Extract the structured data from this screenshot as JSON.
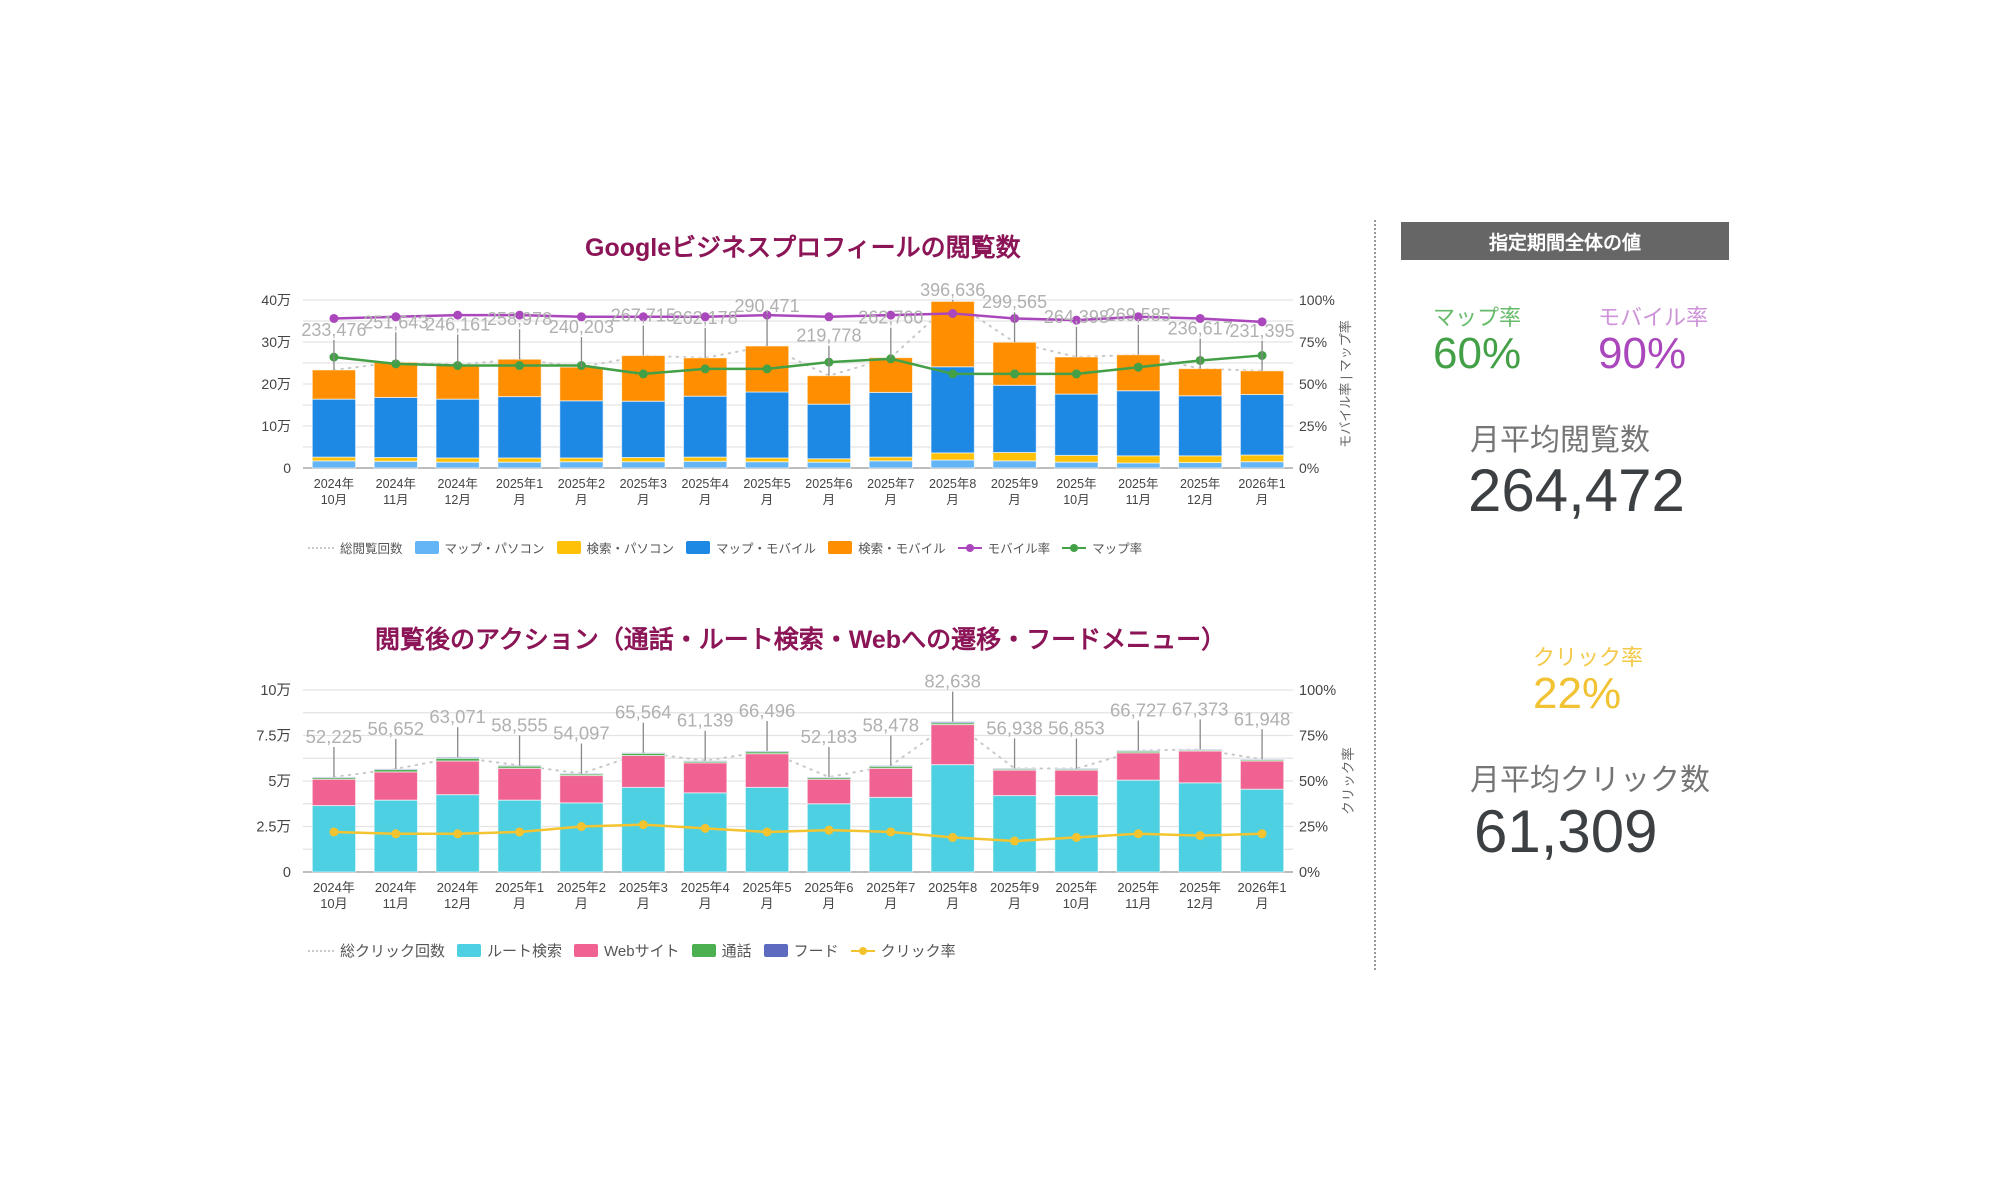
{
  "colors": {
    "title": "#8b1556",
    "map_pc": "#64b5f6",
    "search_pc": "#ffc107",
    "map_mobile": "#1e88e5",
    "search_mobile": "#ff8f00",
    "mobile_rate": "#ab47bc",
    "map_rate": "#43a047",
    "route": "#4dd0e1",
    "web": "#f06292",
    "call": "#4caf50",
    "food": "#5c6bc0",
    "click_rate": "#f4c430",
    "total_label": "#b0b0b0",
    "panel_header_bg": "#666666"
  },
  "chart_data": [
    {
      "type": "bar",
      "stacked": true,
      "title": "Googleビジネスプロフィールの閲覧数",
      "categories": [
        "2024年\n10月",
        "2024年\n11月",
        "2024年\n12月",
        "2025年1\n月",
        "2025年2\n月",
        "2025年3\n月",
        "2025年4\n月",
        "2025年5\n月",
        "2025年6\n月",
        "2025年7\n月",
        "2025年8\n月",
        "2025年9\n月",
        "2025年\n10月",
        "2025年\n11月",
        "2025年\n12月",
        "2026年1\n月"
      ],
      "series": [
        {
          "name": "マップ・パソコン",
          "values": [
            17000,
            16000,
            14000,
            14000,
            15000,
            15000,
            16000,
            15000,
            14000,
            17000,
            19000,
            17000,
            14000,
            12000,
            13000,
            15000
          ]
        },
        {
          "name": "検索・パソコン",
          "values": [
            9000,
            9000,
            10000,
            10000,
            9000,
            10000,
            10000,
            9000,
            8000,
            9000,
            17000,
            20000,
            16000,
            17000,
            16000,
            16000
          ]
        },
        {
          "name": "マップ・モバイル",
          "values": [
            138000,
            143000,
            140000,
            146000,
            136000,
            134000,
            145000,
            157000,
            130000,
            154000,
            205000,
            160000,
            146000,
            155000,
            143000,
            144000
          ],
          "note": "stacked"
        },
        {
          "name": "検索・モバイル",
          "values": [
            69476,
            83643,
            82161,
            88978,
            80203,
            108715,
            91178,
            109471,
            67778,
            82760,
            155636,
            102565,
            88398,
            85585,
            64617,
            56395
          ]
        }
      ],
      "totals": {
        "name": "総閲覧回数",
        "values": [
          233476,
          251643,
          246161,
          258978,
          240203,
          267715,
          262178,
          290471,
          219778,
          262760,
          396636,
          299565,
          264398,
          269585,
          236617,
          231395
        ]
      },
      "lines": [
        {
          "name": "モバイル率",
          "axis": "right",
          "values": [
            89,
            90,
            91,
            91,
            90,
            90,
            90,
            91,
            90,
            91,
            92,
            89,
            88,
            90,
            89,
            87
          ]
        },
        {
          "name": "マップ率",
          "axis": "right",
          "values": [
            66,
            62,
            61,
            61,
            61,
            56,
            59,
            59,
            63,
            65,
            56,
            56,
            56,
            60,
            64,
            67
          ]
        }
      ],
      "y_left": {
        "ticks": [
          "0",
          "10万",
          "20万",
          "30万",
          "40万"
        ],
        "range": [
          0,
          400000
        ]
      },
      "y_right": {
        "ticks": [
          "0%",
          "25%",
          "50%",
          "75%",
          "100%"
        ],
        "range": [
          0,
          100
        ],
        "label": "モバイル率 | マップ率"
      },
      "legend": [
        "総閲覧回数",
        "マップ・パソコン",
        "検索・パソコン",
        "マップ・モバイル",
        "検索・モバイル",
        "モバイル率",
        "マップ率"
      ],
      "legend_position": "bottom",
      "grid": true
    },
    {
      "type": "bar",
      "stacked": true,
      "title": "閲覧後のアクション（通話・ルート検索・Webへの遷移・フードメニュー）",
      "categories": [
        "2024年\n10月",
        "2024年\n11月",
        "2024年\n12月",
        "2025年1\n月",
        "2025年2\n月",
        "2025年3\n月",
        "2025年4\n月",
        "2025年5\n月",
        "2025年6\n月",
        "2025年7\n月",
        "2025年8\n月",
        "2025年9\n月",
        "2025年\n10月",
        "2025年\n11月",
        "2025年\n12月",
        "2026年1\n月"
      ],
      "series": [
        {
          "name": "ルート検索",
          "values": [
            36500,
            39500,
            42500,
            39500,
            38000,
            46500,
            43500,
            46500,
            37500,
            41000,
            59000,
            42000,
            42000,
            50500,
            49000,
            45500
          ]
        },
        {
          "name": "Webサイト",
          "values": [
            14500,
            15500,
            18500,
            17500,
            15000,
            17500,
            16500,
            18500,
            13500,
            16000,
            22000,
            14000,
            14000,
            15000,
            17500,
            15500
          ]
        },
        {
          "name": "通話",
          "values": [
            900,
            1300,
            1500,
            1200,
            900,
            1200,
            800,
            1100,
            900,
            1100,
            1000,
            700,
            700,
            900,
            600,
            700
          ]
        },
        {
          "name": "フード",
          "values": [
            325,
            352,
            571,
            355,
            197,
            364,
            339,
            396,
            283,
            378,
            638,
            238,
            153,
            327,
            273,
            248
          ]
        }
      ],
      "totals": {
        "name": "総クリック回数",
        "values": [
          52225,
          56652,
          63071,
          58555,
          54097,
          65564,
          61139,
          66496,
          52183,
          58478,
          82638,
          56938,
          56853,
          66727,
          67373,
          61948
        ]
      },
      "lines": [
        {
          "name": "クリック率",
          "axis": "right",
          "values": [
            22,
            21,
            21,
            22,
            25,
            26,
            24,
            22,
            23,
            22,
            19,
            17,
            19,
            21,
            20,
            21
          ]
        }
      ],
      "y_left": {
        "ticks": [
          "0",
          "2.5万",
          "5万",
          "7.5万",
          "10万"
        ],
        "range": [
          0,
          100000
        ]
      },
      "y_right": {
        "ticks": [
          "0%",
          "25%",
          "50%",
          "75%",
          "100%"
        ],
        "range": [
          0,
          100
        ],
        "label": "クリック率"
      },
      "legend": [
        "総クリック回数",
        "ルート検索",
        "Webサイト",
        "通話",
        "フード",
        "クリック率"
      ],
      "legend_position": "bottom",
      "grid": true
    }
  ],
  "panel": {
    "header": "指定期間全体の値",
    "map_rate_label": "マップ率",
    "map_rate_value": "60%",
    "mobile_rate_label": "モバイル率",
    "mobile_rate_value": "90%",
    "avg_views_label": "月平均閲覧数",
    "avg_views_value": "264,472",
    "click_rate_label": "クリック率",
    "click_rate_value": "22%",
    "avg_clicks_label": "月平均クリック数",
    "avg_clicks_value": "61,309"
  }
}
